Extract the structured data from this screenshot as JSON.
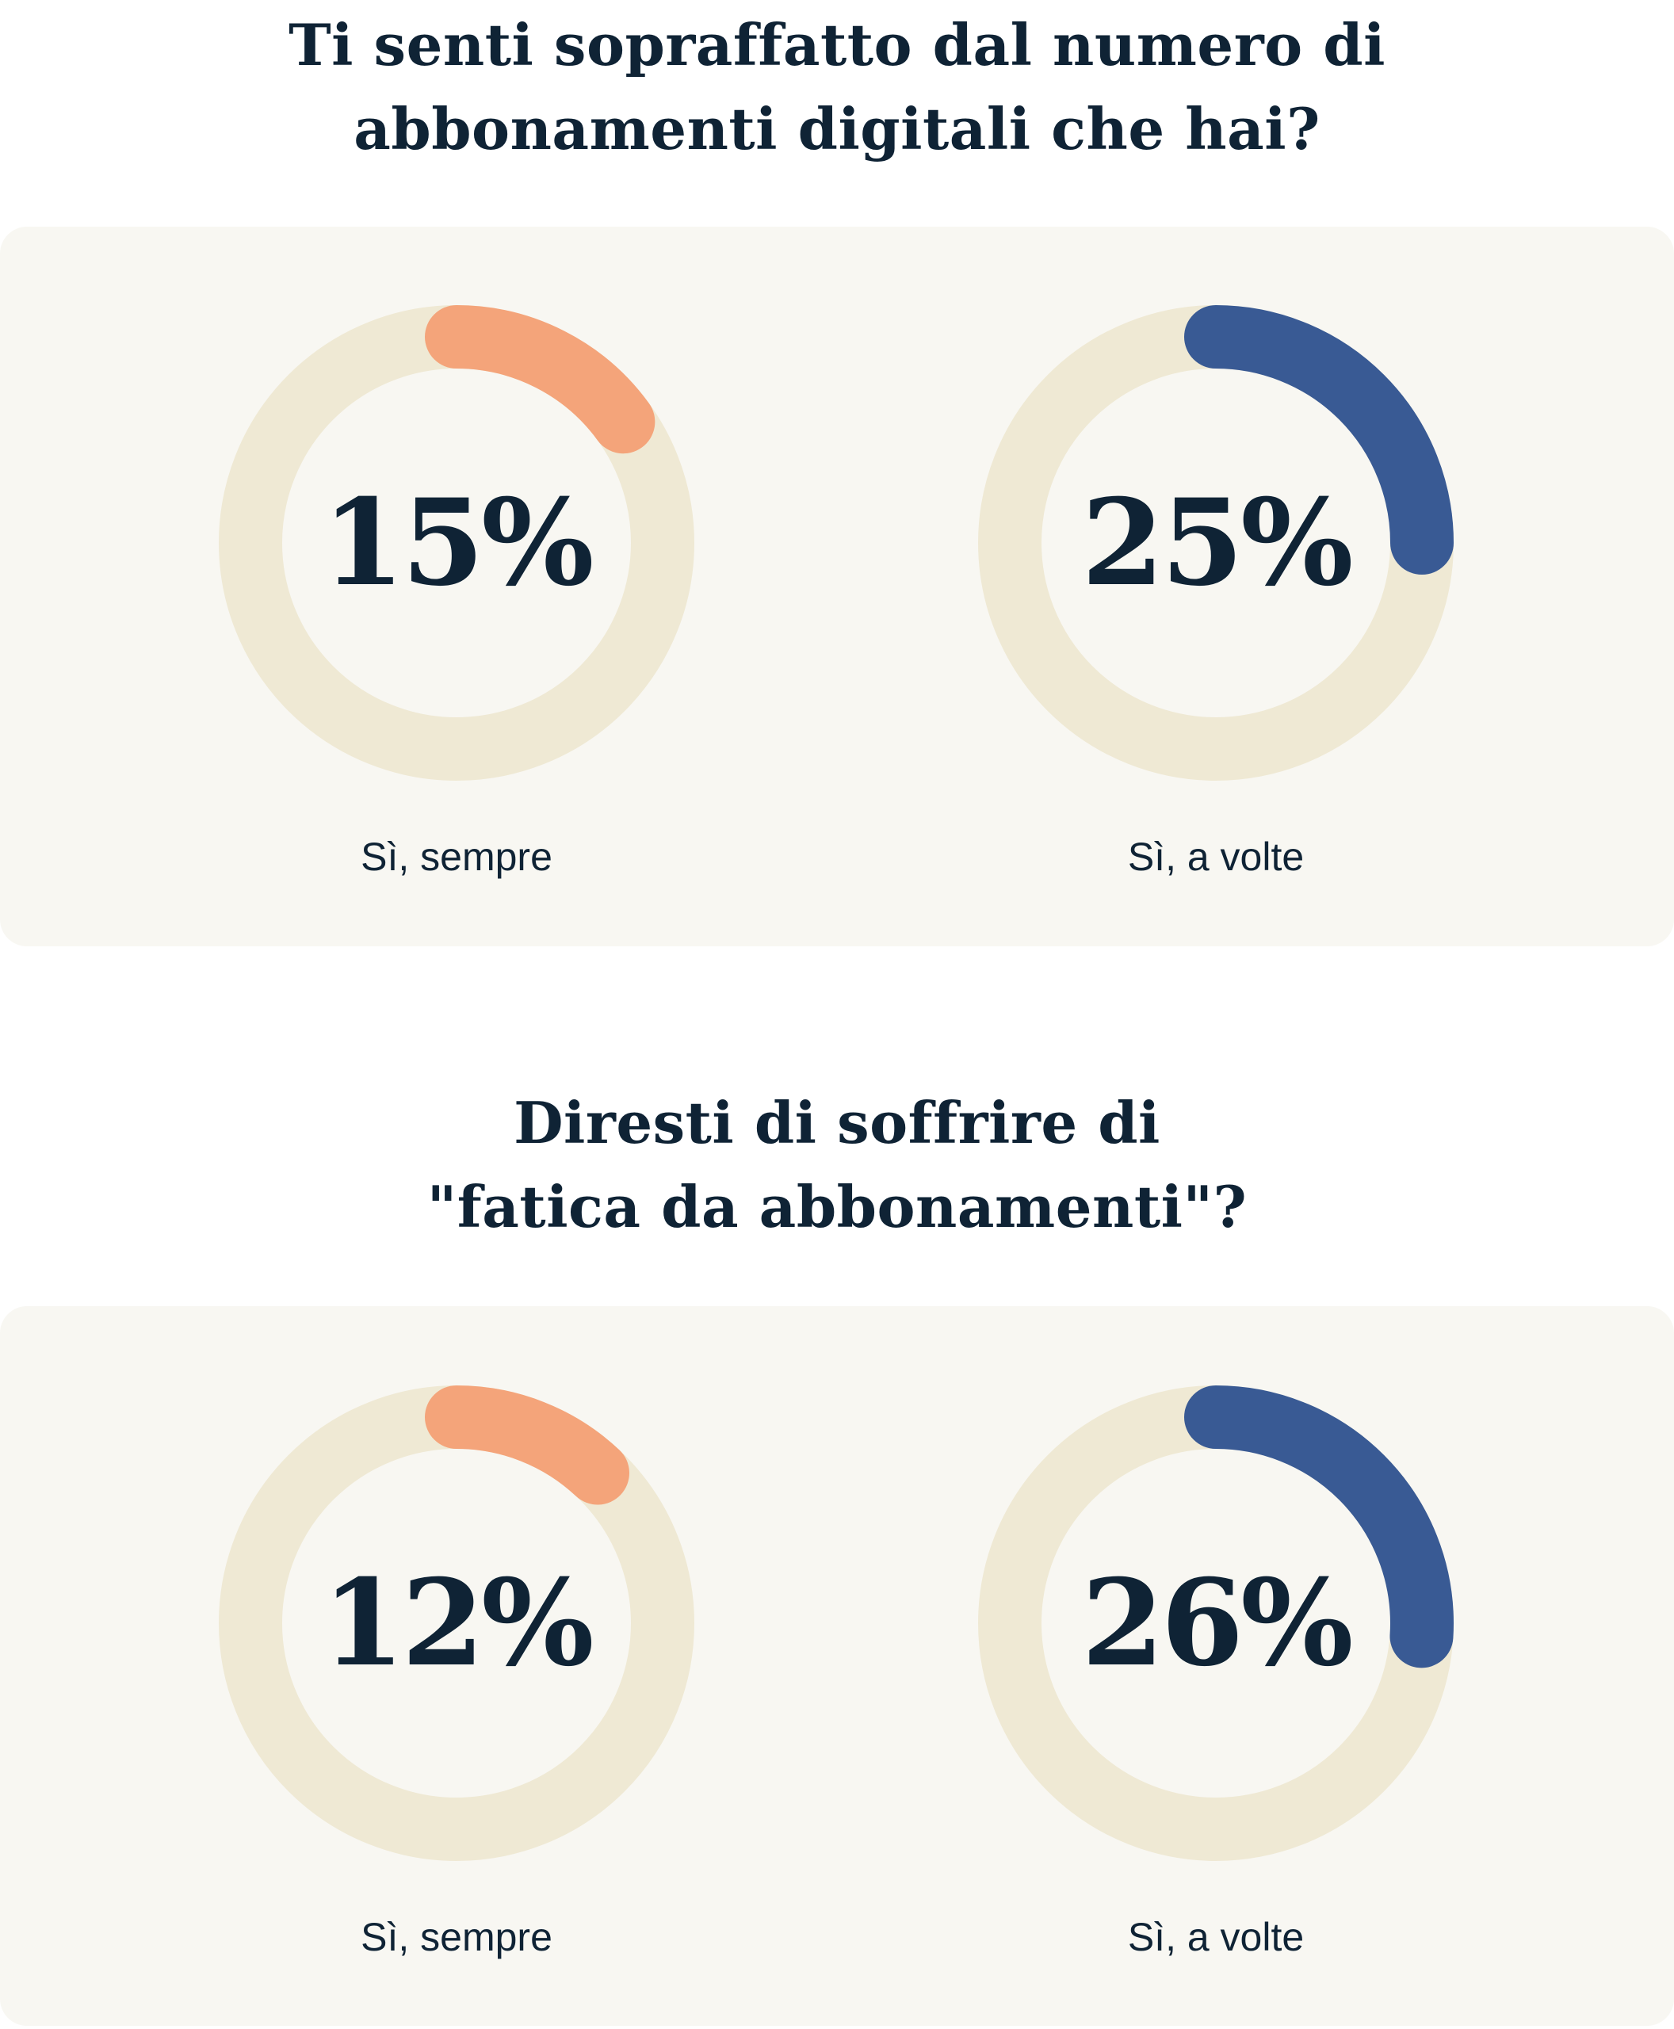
{
  "chart_data": [
    {
      "type": "pie",
      "title": "Ti senti sopraffatto dal numero di abbonamenti digitali che hai?",
      "title_lines": [
        "Ti senti sopraffatto dal numero di",
        "abbonamenti digitali che hai?"
      ],
      "series": [
        {
          "name": "Sì, sempre",
          "value": 15,
          "display": "15%",
          "color": "#f4a47a"
        },
        {
          "name": "Sì, a volte",
          "value": 25,
          "display": "25%",
          "color": "#395a94"
        }
      ],
      "track_color": "#efe9d4"
    },
    {
      "type": "pie",
      "title": "Diresti di soffrire di \"fatica da abbonamenti\"?",
      "title_lines": [
        "Diresti di soffrire di",
        "\"fatica da abbonamenti\"?"
      ],
      "series": [
        {
          "name": "Sì, sempre",
          "value": 12,
          "display": "12%",
          "color": "#f4a47a"
        },
        {
          "name": "Sì, a volte",
          "value": 26,
          "display": "26%",
          "color": "#395a94"
        }
      ],
      "track_color": "#efe9d4"
    }
  ]
}
